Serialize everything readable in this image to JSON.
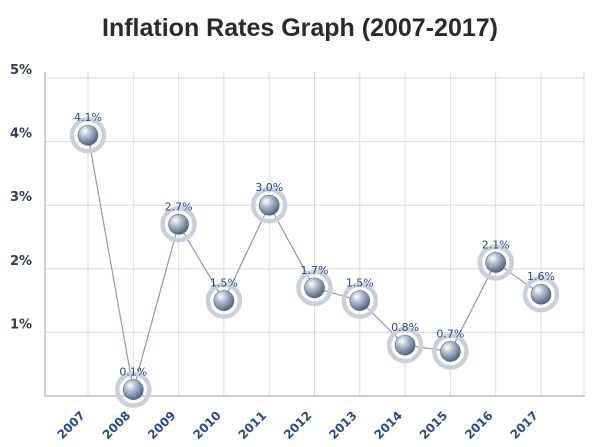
{
  "chart_data": {
    "type": "line",
    "title": "Inflation Rates Graph (2007-2017)",
    "xlabel": "",
    "ylabel": "",
    "categories": [
      "2007",
      "2008",
      "2009",
      "2010",
      "2011",
      "2012",
      "2013",
      "2014",
      "2015",
      "2016",
      "2017"
    ],
    "series": [
      {
        "values": [
          4.1,
          0.1,
          2.7,
          1.5,
          3.0,
          1.7,
          1.5,
          0.8,
          0.7,
          2.1,
          1.6
        ]
      }
    ],
    "data_labels": [
      "4.1%",
      "0.1%",
      "2.7%",
      "1.5%",
      "3.0%",
      "1.7%",
      "1.5%",
      "0.8%",
      "0.7%",
      "2.1%",
      "1.6%"
    ],
    "y_ticks": [
      {
        "value": 1,
        "label": "1%"
      },
      {
        "value": 2,
        "label": "2%"
      },
      {
        "value": 3,
        "label": "3%"
      },
      {
        "value": 4,
        "label": "4%"
      },
      {
        "value": 5,
        "label": "5%"
      }
    ],
    "ylim": [
      0,
      5
    ],
    "grid": true,
    "legend": "none",
    "colors": {
      "grid": "#dcdcdc",
      "axis": "#bfbfbf",
      "line": "#8a9bb5",
      "marker": "#6d7f9c",
      "halo": "#c9d0dc",
      "label": "#2b4a8a",
      "ytick_top": "#7ab648"
    }
  }
}
